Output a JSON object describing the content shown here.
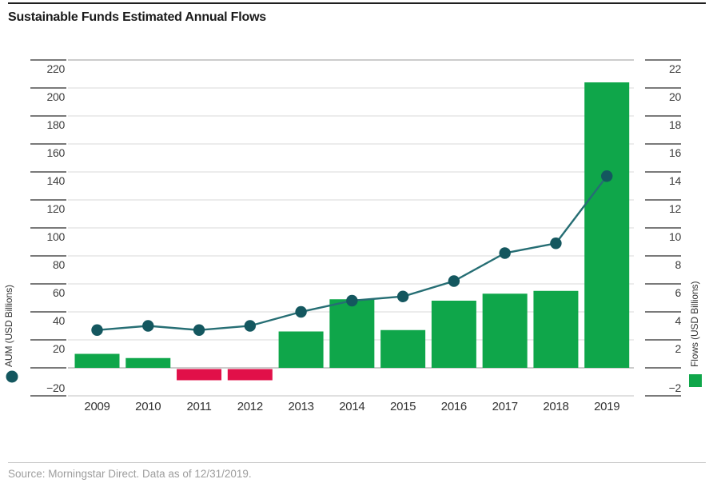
{
  "page": {
    "title": "Sustainable Funds Estimated Annual Flows",
    "source_note": "Source: Morningstar Direct. Data as of 12/31/2019."
  },
  "chart_data": {
    "type": "combo (bar + line, dual axis)",
    "categories": [
      "2009",
      "2010",
      "2011",
      "2012",
      "2013",
      "2014",
      "2015",
      "2016",
      "2017",
      "2018",
      "2019"
    ],
    "series": [
      {
        "name": "Flows (USD Billions)",
        "type": "bar",
        "axis": "right",
        "values": [
          1.0,
          0.7,
          -0.8,
          -0.8,
          2.6,
          4.9,
          2.7,
          4.8,
          5.3,
          5.5,
          20.4
        ],
        "color": "#0FA64A",
        "negative_color": "#E11049"
      },
      {
        "name": "AUM (USD Billions)",
        "type": "line",
        "axis": "left",
        "values": [
          27,
          30,
          27,
          30,
          40,
          48,
          51,
          62,
          82,
          89,
          137
        ],
        "color": "#266E74",
        "marker_color": "#14575F"
      }
    ],
    "left_axis": {
      "title": "AUM (USD Billions)",
      "range": [
        -20,
        220
      ],
      "tick_step": 20
    },
    "right_axis": {
      "title": "Flows (USD Billions)",
      "range": [
        -2,
        22
      ],
      "tick_step": 2
    },
    "ticks": [
      {
        "value": 220,
        "left": "220",
        "right": "22"
      },
      {
        "value": 200,
        "left": "200",
        "right": "20"
      },
      {
        "value": 180,
        "left": "180",
        "right": "18"
      },
      {
        "value": 160,
        "left": "160",
        "right": "16"
      },
      {
        "value": 140,
        "left": "140",
        "right": "14"
      },
      {
        "value": 120,
        "left": "120",
        "right": "12"
      },
      {
        "value": 100,
        "left": "100",
        "right": "10"
      },
      {
        "value": 80,
        "left": "80",
        "right": "8"
      },
      {
        "value": 60,
        "left": "60",
        "right": "6"
      },
      {
        "value": 40,
        "left": "40",
        "right": "4"
      },
      {
        "value": 20,
        "left": "20",
        "right": "2"
      },
      {
        "value": 0,
        "left": "",
        "right": ""
      },
      {
        "value": -20,
        "left": "−20",
        "right": "−2"
      }
    ],
    "grid": true,
    "legend": {
      "left_marker": "circle",
      "right_marker": "square",
      "position": "bottom of each vertical axis title"
    }
  }
}
